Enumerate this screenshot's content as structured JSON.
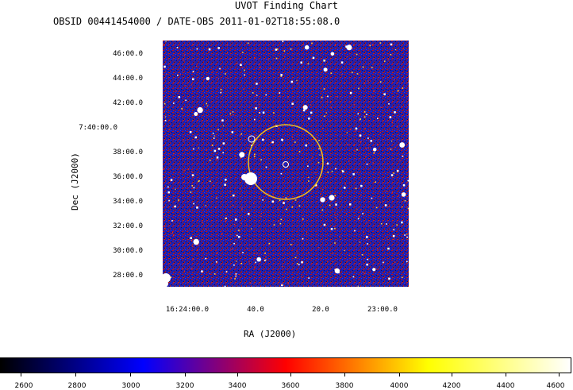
{
  "header": {
    "title": "UVOT Finding Chart",
    "subtitle": "OBSID 00441454000 / DATE-OBS 2011-01-02T18:55:08.0"
  },
  "axes": {
    "xlabel": "RA (J2000)",
    "ylabel": "Dec (J2000)",
    "xticks": [
      "16:24:00.0",
      "40.0",
      "20.0",
      "23:00.0"
    ],
    "yticks": [
      "46:00.0",
      "44:00.0",
      "42:00.0",
      "7:40:00.0",
      "38:00.0",
      "36:00.0",
      "34:00.0",
      "32:00.0",
      "30:00.0",
      "28:00.0"
    ]
  },
  "colorbar": {
    "ticks": [
      "2600",
      "2800",
      "3000",
      "3200",
      "3400",
      "3600",
      "3800",
      "4000",
      "4200",
      "4400",
      "4600"
    ],
    "colors": [
      "#000000",
      "#0000ff",
      "#ff0000",
      "#ffff00",
      "#ffffff"
    ]
  },
  "overlays": {
    "error_circle_color": "#f0c020",
    "marker_color": "#ffffff"
  }
}
